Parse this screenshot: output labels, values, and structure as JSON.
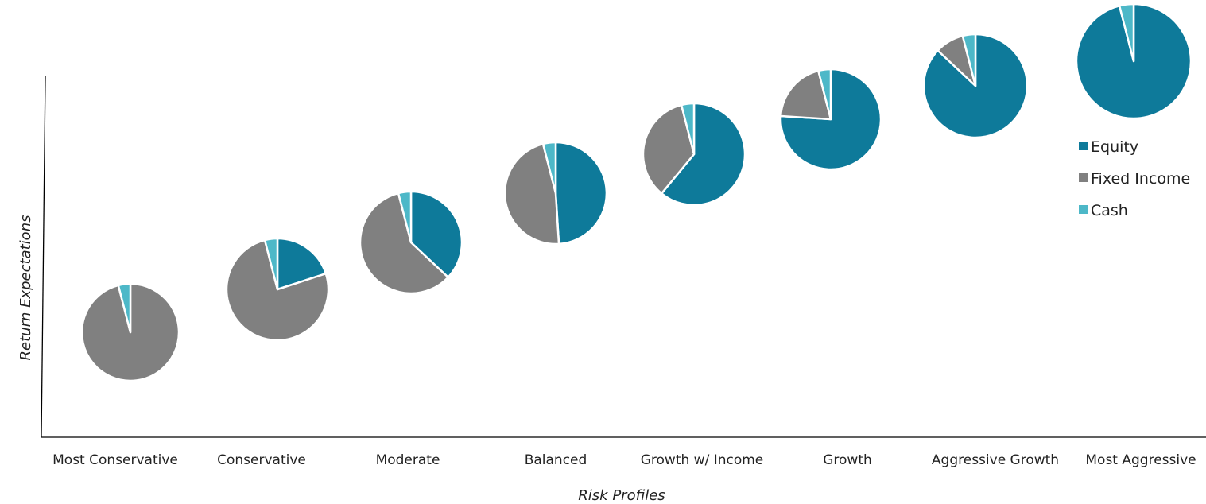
{
  "chart_data": {
    "type": "pie",
    "xlabel": "Risk Profiles",
    "ylabel": "Return Expectations",
    "categories": [
      "Most Conservative",
      "Conservative",
      "Moderate",
      "Balanced",
      "Growth w/ Income",
      "Growth",
      "Aggressive Growth",
      "Most Aggressive"
    ],
    "slice_labels": [
      "Equity",
      "Fixed Income",
      "Cash"
    ],
    "colors": {
      "Equity": "#0e7a9a",
      "Fixed Income": "#808080",
      "Cash": "#4db8c8"
    },
    "series": [
      {
        "name": "Equity",
        "values": [
          0,
          20,
          37,
          49,
          61,
          76,
          87,
          96
        ]
      },
      {
        "name": "Fixed Income",
        "values": [
          96,
          76,
          59,
          47,
          35,
          20,
          9,
          0
        ]
      },
      {
        "name": "Cash",
        "values": [
          4,
          4,
          4,
          4,
          4,
          4,
          4,
          4
        ]
      }
    ],
    "legend_position": "right",
    "grid": false
  }
}
